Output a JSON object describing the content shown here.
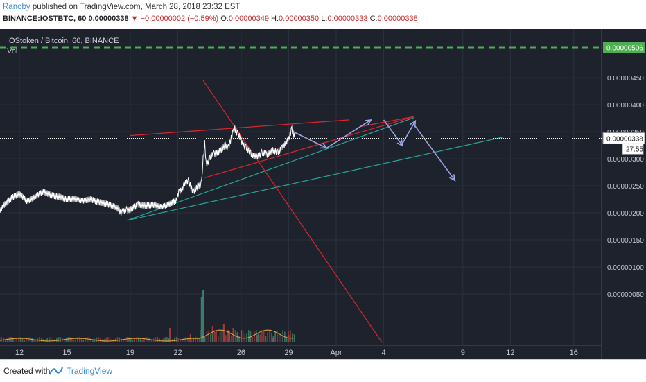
{
  "header": {
    "author": "Ranoby",
    "published_text": "published on TradingView.com, March 28, 2018 23:32 EST",
    "symbol": "BINANCE:IOSTBTC, 60",
    "last": "0.00000338",
    "change_arrow": "▼",
    "change": "−0.00000002 (−0.59%)",
    "o_label": "O:",
    "o_value": "0.00000349",
    "h_label": "H:",
    "h_value": "0.00000350",
    "l_label": "L:",
    "l_value": "0.00000333",
    "c_label": "C:",
    "c_value": "0.00000338"
  },
  "legend": {
    "title": "IOStoken / Bitcoin, 60, BINANCE",
    "vol": "Vol"
  },
  "footer": {
    "created_with": "Created with",
    "brand": "TradingView"
  },
  "colors": {
    "background": "#1e222d",
    "grid": "#2b3040",
    "price": "#ffffff",
    "trend_red": "#d3262f",
    "trend_teal": "#26a69a",
    "arrow": "#9aa6e6",
    "target": "#4caf50",
    "vol_up": "#3a7f6f",
    "vol_down": "#9c3b3b",
    "vol_ma": "#e8a838"
  },
  "chart_data": {
    "type": "line",
    "x_ticks": [
      "12",
      "15",
      "19",
      "22",
      "26",
      "29",
      "Apr",
      "4",
      "9",
      "12",
      "16"
    ],
    "x_tick_days": [
      12,
      15,
      19,
      22,
      26,
      29,
      32,
      35,
      40,
      43,
      47
    ],
    "price_ticks": [
      "0.00000450",
      "0.00000400",
      "0.00000350",
      "0.00000300",
      "0.00000250",
      "0.00000200",
      "0.00000150",
      "0.00000100",
      "0.00000050"
    ],
    "price_tick_values": [
      450,
      400,
      350,
      300,
      250,
      200,
      150,
      100,
      50
    ],
    "ylim": [
      -45,
      540
    ],
    "price_unit_note": "values in 1e-8 BTC",
    "last_price_label": "0.00000338",
    "last_price": 338,
    "countdown": "27:55",
    "target_label": "0.00000506",
    "target_price": 506,
    "series": [
      {
        "name": "IOSTBTC",
        "points": [
          [
            10.6,
            200
          ],
          [
            11,
            215
          ],
          [
            11.5,
            228
          ],
          [
            12,
            235
          ],
          [
            12.5,
            220
          ],
          [
            13,
            228
          ],
          [
            13.5,
            238
          ],
          [
            14,
            232
          ],
          [
            14.5,
            230
          ],
          [
            15,
            226
          ],
          [
            15.5,
            228
          ],
          [
            16,
            224
          ],
          [
            16.5,
            226
          ],
          [
            17,
            220
          ],
          [
            17.5,
            216
          ],
          [
            18,
            210
          ],
          [
            18.3,
            205
          ],
          [
            18.5,
            200
          ],
          [
            18.8,
            205
          ],
          [
            19.2,
            210
          ],
          [
            19.5,
            215
          ],
          [
            20,
            214
          ],
          [
            20.5,
            216
          ],
          [
            21,
            213
          ],
          [
            21.5,
            218
          ],
          [
            21.9,
            222
          ],
          [
            22.1,
            240
          ],
          [
            22.4,
            252
          ],
          [
            22.7,
            258
          ],
          [
            23,
            238
          ],
          [
            23.3,
            250
          ],
          [
            23.5,
            255
          ],
          [
            23.6,
            300
          ],
          [
            23.7,
            330
          ],
          [
            23.8,
            290
          ],
          [
            24,
            300
          ],
          [
            24.3,
            310
          ],
          [
            24.7,
            315
          ],
          [
            25,
            325
          ],
          [
            25.2,
            320
          ],
          [
            25.5,
            350
          ],
          [
            25.6,
            355
          ],
          [
            25.8,
            345
          ],
          [
            26,
            335
          ],
          [
            26.3,
            320
          ],
          [
            26.6,
            310
          ],
          [
            27,
            305
          ],
          [
            27.3,
            310
          ],
          [
            27.6,
            308
          ],
          [
            28,
            315
          ],
          [
            28.3,
            312
          ],
          [
            28.6,
            320
          ],
          [
            29,
            335
          ],
          [
            29.2,
            355
          ],
          [
            29.4,
            338
          ]
        ]
      }
    ],
    "volume": [
      [
        23.5,
        110
      ],
      [
        23.6,
        125
      ],
      [
        24.2,
        40
      ],
      [
        24.4,
        25
      ],
      [
        24.9,
        45
      ],
      [
        25.2,
        30
      ],
      [
        25.5,
        35
      ],
      [
        26,
        30
      ],
      [
        26.5,
        15
      ],
      [
        27,
        18
      ],
      [
        21.5,
        35
      ],
      [
        22.8,
        20
      ],
      [
        28,
        12
      ],
      [
        29,
        18
      ]
    ],
    "drawings": {
      "red_lines": [
        [
          [
            19,
            343
          ],
          [
            32.8,
            372
          ]
        ],
        [
          [
            23.7,
            265
          ],
          [
            36.9,
            378
          ]
        ],
        [
          [
            23.6,
            445
          ],
          [
            34.9,
            -40
          ]
        ]
      ],
      "red_wedge": [
        [
          32.8,
          372
        ],
        [
          36.9,
          378
        ],
        [
          32.8,
          372
        ],
        [
          33.6,
          360
        ]
      ],
      "teal_lines": [
        [
          [
            18.8,
            186
          ],
          [
            36.9,
            376
          ]
        ],
        [
          [
            18.8,
            186
          ],
          [
            42.5,
            340
          ]
        ]
      ],
      "arrows": [
        [
          [
            29.3,
            350
          ],
          [
            31.4,
            320
          ]
        ],
        [
          [
            31.4,
            320
          ],
          [
            34.2,
            372
          ]
        ],
        [
          [
            35,
            372
          ],
          [
            36.2,
            324
          ]
        ],
        [
          [
            36.1,
            324
          ],
          [
            37,
            370
          ]
        ],
        [
          [
            37,
            360
          ],
          [
            39.5,
            260
          ]
        ]
      ]
    }
  }
}
